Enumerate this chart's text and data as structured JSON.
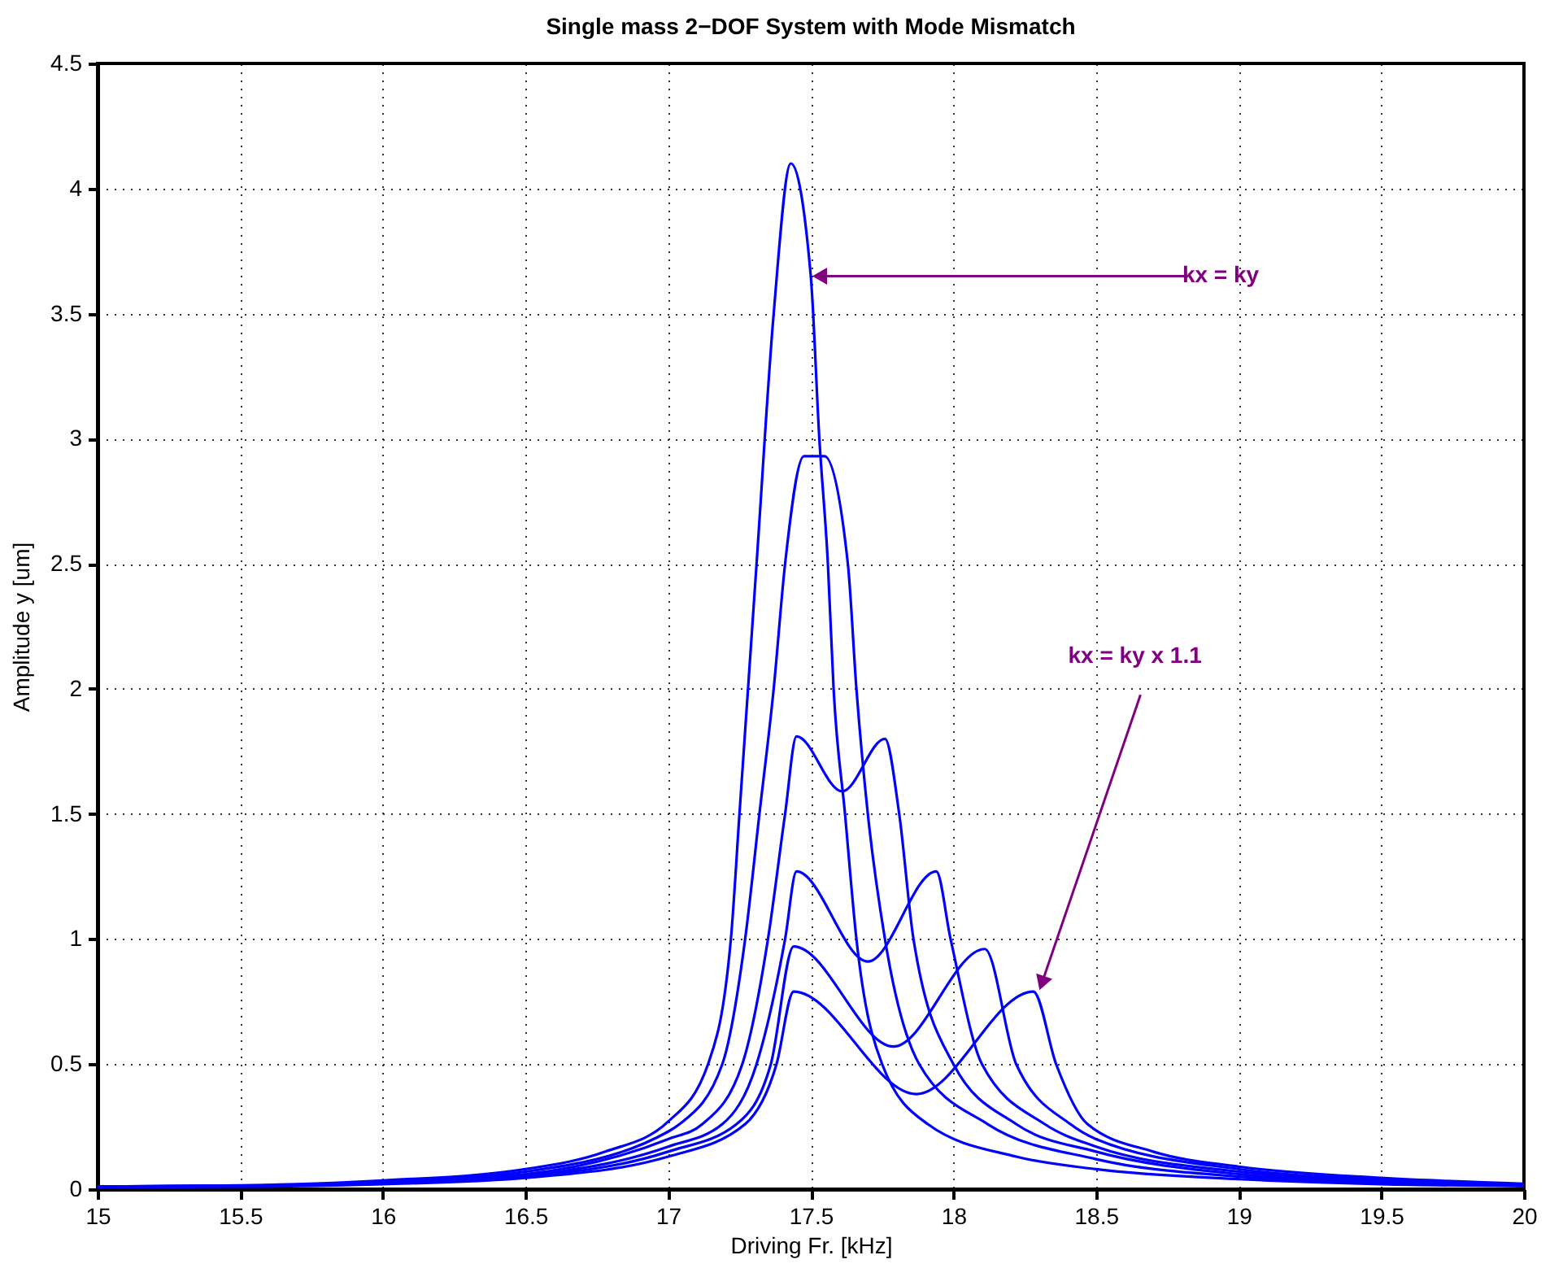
{
  "chart_data": {
    "type": "line",
    "title": "Single mass 2−DOF System with Mode Mismatch",
    "xlabel": "Driving Fr. [kHz]",
    "ylabel": "Amplitude y [um]",
    "xlim": [
      15,
      20
    ],
    "ylim": [
      0,
      4.5
    ],
    "xticks": [
      15,
      15.5,
      16,
      16.5,
      17,
      17.5,
      18,
      18.5,
      19,
      19.5,
      20
    ],
    "yticks": [
      0,
      0.5,
      1,
      1.5,
      2,
      2.5,
      3,
      3.5,
      4,
      4.5
    ],
    "grid": true,
    "line_style": "solid",
    "marker": "none",
    "annotations": [
      {
        "text": "kx = ky",
        "x": 17.5,
        "y": 3.65
      },
      {
        "text": "kx = ky x 1.1",
        "x": 18.3,
        "y": 0.79
      }
    ],
    "series": [
      {
        "color": "#0000ff",
        "x": [
          15,
          15.5,
          16,
          16.5,
          16.78,
          17,
          17.14,
          17.22,
          17.25,
          17.31,
          17.37,
          17.43,
          17.5,
          17.53,
          17.56,
          17.58,
          17.62,
          17.66,
          17.75,
          17.91,
          18.22,
          18.5,
          19,
          19.5,
          20
        ],
        "values": [
          0.01,
          0.015,
          0.035,
          0.08,
          0.15,
          0.27,
          0.5,
          1.0,
          1.5,
          2.5,
          3.5,
          4.1,
          3.65,
          3.0,
          2.5,
          2.0,
          1.5,
          1.0,
          0.5,
          0.26,
          0.13,
          0.08,
          0.04,
          0.02,
          0.012
        ]
      },
      {
        "color": "#0000ff",
        "x": [
          15,
          15.5,
          16,
          16.5,
          17,
          17.04,
          17.19,
          17.27,
          17.32,
          17.37,
          17.41,
          17.476,
          17.548,
          17.63,
          17.66,
          17.7,
          17.76,
          17.88,
          18.12,
          18.5,
          19,
          19.5,
          20
        ],
        "values": [
          0.01,
          0.014,
          0.03,
          0.07,
          0.23,
          0.26,
          0.5,
          1.0,
          1.5,
          2.0,
          2.5,
          2.93,
          2.93,
          2.5,
          2.0,
          1.5,
          1.0,
          0.5,
          0.26,
          0.12,
          0.05,
          0.025,
          0.014
        ]
      },
      {
        "color": "#0000ff",
        "x": [
          15,
          15.5,
          16,
          16.5,
          17,
          17.12,
          17.26,
          17.35,
          17.41,
          17.45,
          17.61,
          17.76,
          17.81,
          17.86,
          18.0,
          18.22,
          18.5,
          19,
          19.5,
          20
        ],
        "values": [
          0.01,
          0.013,
          0.028,
          0.06,
          0.2,
          0.26,
          0.5,
          1.0,
          1.5,
          1.81,
          1.59,
          1.8,
          1.5,
          1.0,
          0.5,
          0.26,
          0.15,
          0.06,
          0.03,
          0.016
        ]
      },
      {
        "color": "#0000ff",
        "x": [
          15,
          15.5,
          16,
          16.5,
          17,
          17.19,
          17.31,
          17.41,
          17.45,
          17.7,
          17.94,
          17.99,
          18.1,
          18.32,
          18.5,
          19,
          19.5,
          20
        ],
        "values": [
          0.01,
          0.012,
          0.025,
          0.055,
          0.17,
          0.26,
          0.5,
          1.0,
          1.27,
          0.91,
          1.27,
          1.0,
          0.5,
          0.26,
          0.17,
          0.07,
          0.035,
          0.018
        ]
      },
      {
        "color": "#0000ff",
        "x": [
          15,
          15.5,
          16,
          16.5,
          17,
          17.24,
          17.36,
          17.44,
          17.79,
          18.11,
          18.22,
          18.41,
          18.5,
          19,
          19.5,
          20
        ],
        "values": [
          0.009,
          0.011,
          0.022,
          0.05,
          0.15,
          0.26,
          0.5,
          0.97,
          0.57,
          0.96,
          0.5,
          0.26,
          0.2,
          0.08,
          0.04,
          0.02
        ]
      },
      {
        "color": "#0000ff",
        "x": [
          15,
          15.5,
          16,
          16.5,
          17,
          17.27,
          17.38,
          17.44,
          17.87,
          18.28,
          18.36,
          18.47,
          18.7,
          19,
          19.5,
          20
        ],
        "values": [
          0.008,
          0.01,
          0.02,
          0.045,
          0.13,
          0.26,
          0.5,
          0.79,
          0.38,
          0.79,
          0.5,
          0.26,
          0.15,
          0.09,
          0.045,
          0.022
        ]
      }
    ]
  }
}
